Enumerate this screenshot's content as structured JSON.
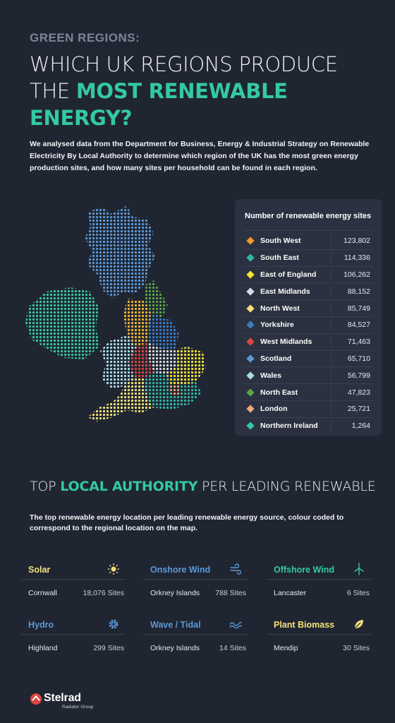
{
  "header": {
    "kicker": "GREEN REGIONS:",
    "title_line1": "WHICH UK REGIONS PRODUCE",
    "title_line2_plain": "THE ",
    "title_line2_accent": "MOST RENEWABLE ENERGY?"
  },
  "intro": "We analysed data from the Department for Business, Energy & Industrial Strategy on Renewable Electricity By Local Authority to determine which region of the UK has the most green energy production sites, and how many sites per household can be found in each region.",
  "table": {
    "title": "Number of renewable energy sites",
    "rows": [
      {
        "region": "South West",
        "value": "123,802",
        "color": "#f29a2e"
      },
      {
        "region": "South East",
        "value": "114,336",
        "color": "#2fb7a3"
      },
      {
        "region": "East of England",
        "value": "106,262",
        "color": "#f4e533"
      },
      {
        "region": "East Midlands",
        "value": "88,152",
        "color": "#d9dde3"
      },
      {
        "region": "North West",
        "value": "85,749",
        "color": "#f3e27a"
      },
      {
        "region": "Yorkshire",
        "value": "84,527",
        "color": "#3b7cc4"
      },
      {
        "region": "West Midlands",
        "value": "71,463",
        "color": "#d9483e"
      },
      {
        "region": "Scotland",
        "value": "65,710",
        "color": "#5c99d6"
      },
      {
        "region": "Wales",
        "value": "56,799",
        "color": "#a9dde6"
      },
      {
        "region": "North East",
        "value": "47,823",
        "color": "#5aa845"
      },
      {
        "region": "London",
        "value": "25,721",
        "color": "#eba97a"
      },
      {
        "region": "Northern Ireland",
        "value": "1,264",
        "color": "#35c9a0"
      }
    ]
  },
  "section2": {
    "title_plain1": "TOP ",
    "title_accent": "LOCAL AUTHORITY",
    "title_plain2": " PER LEADING RENEWABLE",
    "description": "The top renewable energy location per leading renewable energy source, colour coded to correspond to the regional location on the map."
  },
  "cards": [
    {
      "label": "Solar",
      "location": "Cornwall",
      "sites": "18,076 Sites",
      "color": "#f3e27a",
      "icon": "sun-icon"
    },
    {
      "label": "Onshore Wind",
      "location": "Orkney Islands",
      "sites": "788 Sites",
      "color": "#5c99d6",
      "icon": "wind-icon"
    },
    {
      "label": "Offshore Wind",
      "location": "Lancaster",
      "sites": "6 Sites",
      "color": "#35c9a0",
      "icon": "wind-turbine-icon"
    },
    {
      "label": "Hydro",
      "location": "Highland",
      "sites": "299 Sites",
      "color": "#5c99d6",
      "icon": "gear-icon"
    },
    {
      "label": "Wave / Tidal",
      "location": "Orkney Islands",
      "sites": "14 Sites",
      "color": "#5c99d6",
      "icon": "wave-icon"
    },
    {
      "label": "Plant Biomass",
      "location": "Mendip",
      "sites": "30 Sites",
      "color": "#f3e27a",
      "icon": "leaf-icon"
    }
  ],
  "logo": {
    "name": "Stelrad",
    "sub": "Radiator Group"
  }
}
